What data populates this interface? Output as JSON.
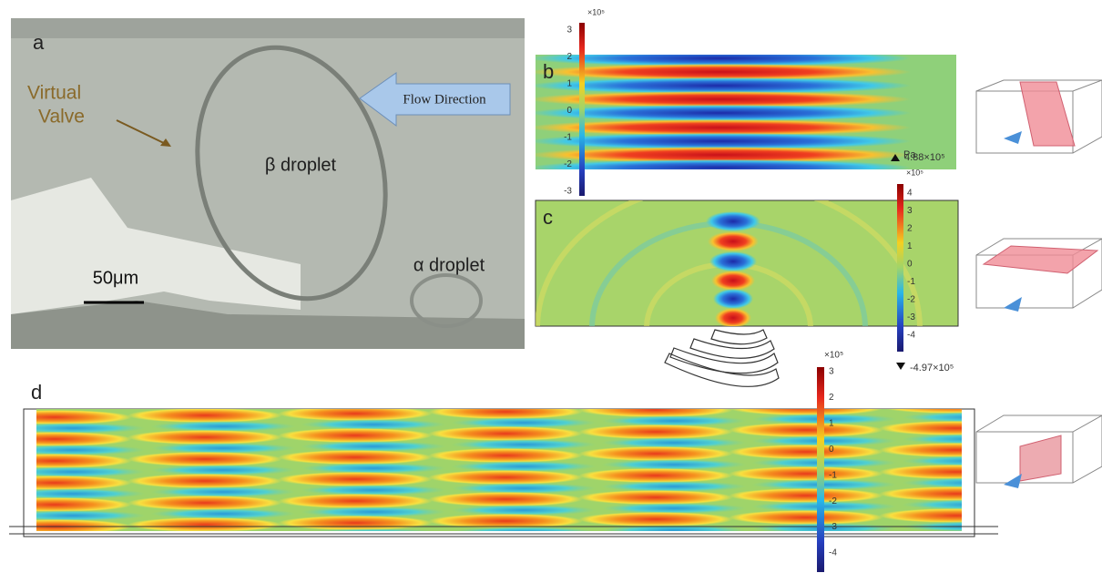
{
  "panel_a": {
    "label": "a",
    "annotation": [
      "Virtual",
      "Valve"
    ],
    "flow_arrow": "Flow Direction",
    "droplet_beta": "β droplet",
    "droplet_alpha": "α droplet",
    "scale_bar": "50μm"
  },
  "panel_b": {
    "label": "b",
    "colorbar": {
      "multiplier": "×10⁵",
      "ticks": [
        3,
        2,
        1,
        0,
        -1,
        -2,
        -3
      ]
    },
    "unit": "Pa",
    "max": "4.88×10⁵"
  },
  "panel_c": {
    "label": "c",
    "colorbar": {
      "multiplier": "×10⁵",
      "ticks": [
        4,
        3,
        2,
        1,
        0,
        -1,
        -2,
        -3,
        -4
      ]
    },
    "min": "-4.97×10⁵"
  },
  "panel_d": {
    "label": "d",
    "colorbar": {
      "multiplier": "×10⁵",
      "ticks": [
        3,
        2,
        1,
        0,
        -1,
        -2,
        -3,
        -4
      ]
    }
  }
}
